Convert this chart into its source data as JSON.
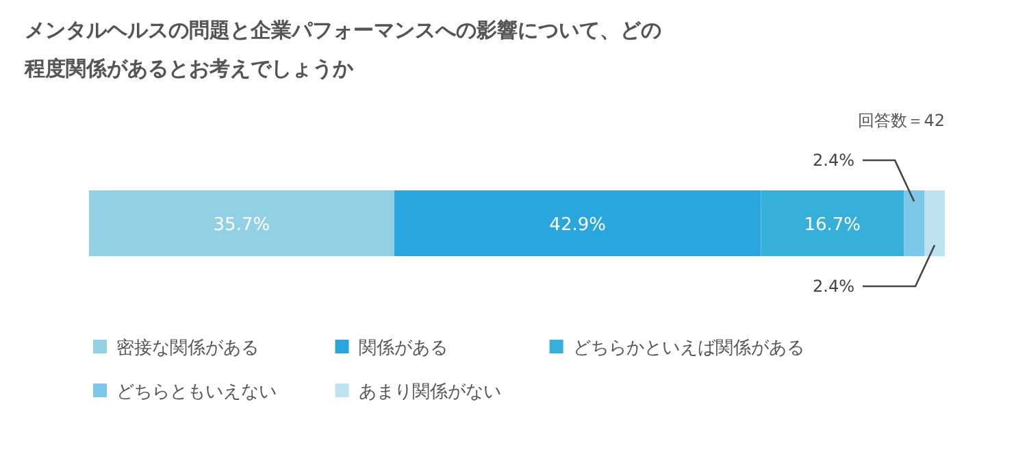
{
  "chart_data": {
    "type": "bar",
    "orientation": "horizontal",
    "stacked": true,
    "title": "メンタルヘルスの問題と企業パフォーマンスへの影響について、どの程度関係があるとお考えでしょうか",
    "subtitle": "回答数＝42",
    "categories": [
      null
    ],
    "xlim": [
      0,
      100.1
    ],
    "legend": "bottom",
    "series": [
      {
        "name": "密接な関係がある",
        "color": "#92d0e4",
        "values": [
          35.7
        ],
        "value_labels": [
          "35.7%"
        ]
      },
      {
        "name": "関係がある",
        "color": "#29a6de",
        "values": [
          42.9
        ],
        "value_labels": [
          "42.9%"
        ]
      },
      {
        "name": "どちらかといえば関係がある",
        "color": "#36b0d8",
        "values": [
          16.7
        ],
        "value_labels": [
          "16.7%"
        ]
      },
      {
        "name": "どちらともいえない",
        "color": "#7dc8ea",
        "values": [
          2.4
        ],
        "value_labels": [
          "2.4%"
        ]
      },
      {
        "name": "あまり関係がない",
        "color": "#bde3f0",
        "values": [
          2.4
        ],
        "value_labels": [
          "2.4%"
        ]
      }
    ]
  }
}
